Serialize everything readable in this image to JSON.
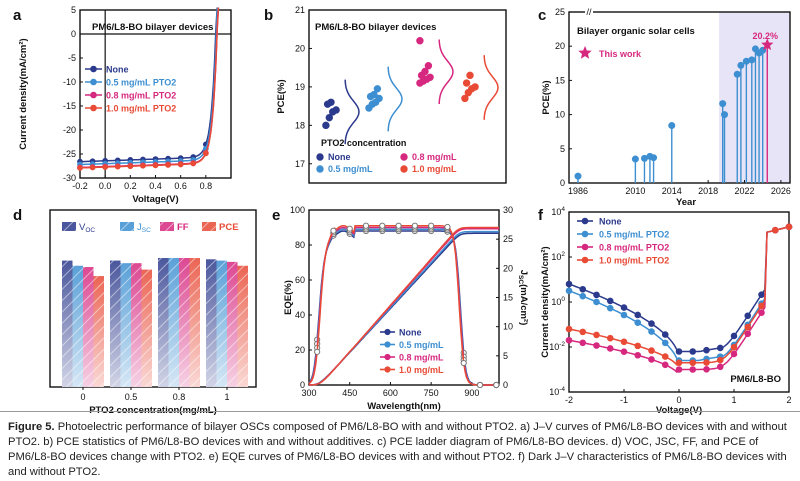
{
  "caption": {
    "label": "Figure 5.",
    "text": "Photoelectric performance of bilayer OSCs composed of PM6/L8-BO with and without PTO2. a) J–V curves of PM6/L8-BO devices with and without PTO2. b) PCE statistics of PM6/L8-BO devices with and without additives. c) PCE ladder diagram of PM6/L8-BO devices. d) VOC, JSC, FF, and PCE of PM6/L8-BO devices change with PTO2. e) EQE curves of PM6/L8-BO devices with and without PTO2. f) Dark J–V characteristics of PM6/L8-BO devices with and without PTO2."
  },
  "colors": {
    "none": "#2b3a8c",
    "c05": "#3d8fd1",
    "c08": "#d6287f",
    "c10": "#e84a36",
    "star": "#d6287f",
    "ladder": "#3d8fd1"
  },
  "chart_data": [
    {
      "panel": "a",
      "type": "line",
      "title": "PM6/L8-BO bilayer devices",
      "xlabel": "Voltage(V)",
      "ylabel": "Current density(mA/cm²)",
      "xlim": [
        -0.2,
        1.0
      ],
      "ylim": [
        -30,
        5
      ],
      "xticks": [
        "-0.2",
        "0.0",
        "0.2",
        "0.4",
        "0.6",
        "0.8"
      ],
      "yticks": [
        "5",
        "0",
        "-5",
        "-10",
        "-15",
        "-20",
        "-25",
        "-30"
      ],
      "legend": "center-left",
      "series": [
        {
          "name": "None",
          "jsc": -26.6,
          "voc": 0.88
        },
        {
          "name": "0.5 mg/mL PTO2",
          "jsc": -27.2,
          "voc": 0.885
        },
        {
          "name": "0.8 mg/mL PTO2",
          "jsc": -27.8,
          "voc": 0.89
        },
        {
          "name": "1.0 mg/mL PTO2",
          "jsc": -27.9,
          "voc": 0.89
        }
      ]
    },
    {
      "panel": "b",
      "type": "scatter",
      "title": "PM6/L8-BO bilayer devices",
      "ylabel": "PCE(%)",
      "ylim": [
        16.5,
        21
      ],
      "yticks": [
        "17",
        "18",
        "19",
        "20",
        "21"
      ],
      "legend_title": "PTO2 concentration",
      "series": [
        {
          "name": "None",
          "values": [
            18.0,
            18.2,
            18.35,
            18.4,
            18.55,
            18.6
          ]
        },
        {
          "name": "0.5 mg/mL",
          "values": [
            18.45,
            18.55,
            18.6,
            18.7,
            18.75,
            18.8,
            18.95
          ]
        },
        {
          "name": "0.8 mg/mL",
          "values": [
            19.1,
            19.15,
            19.2,
            19.25,
            19.3,
            19.4,
            19.55,
            20.2
          ]
        },
        {
          "name": "1.0 mg/mL",
          "values": [
            18.7,
            18.85,
            18.95,
            19.0,
            19.1,
            19.3
          ]
        }
      ]
    },
    {
      "panel": "c",
      "type": "bar",
      "title": "Bilayer organic solar cells",
      "xlabel": "Year",
      "ylabel": "PCE(%)",
      "ylim": [
        0,
        25
      ],
      "yticks": [
        "0",
        "5",
        "10",
        "15",
        "20",
        "25"
      ],
      "xticks": [
        "1986",
        "2010",
        "2014",
        "2018",
        "2022",
        "2026"
      ],
      "annotation": "This work",
      "highlight_value": "20.2%",
      "points": [
        {
          "year": 1986,
          "pce": 1.0
        },
        {
          "year": 2010,
          "pce": 3.5
        },
        {
          "year": 2011,
          "pce": 3.6
        },
        {
          "year": 2011.6,
          "pce": 3.9
        },
        {
          "year": 2012,
          "pce": 3.7
        },
        {
          "year": 2014,
          "pce": 8.4
        },
        {
          "year": 2019.6,
          "pce": 11.6
        },
        {
          "year": 2019.8,
          "pce": 10.0
        },
        {
          "year": 2021.2,
          "pce": 15.9
        },
        {
          "year": 2021.6,
          "pce": 17.2
        },
        {
          "year": 2022.2,
          "pce": 17.8
        },
        {
          "year": 2022.8,
          "pce": 18.0
        },
        {
          "year": 2023.2,
          "pce": 19.6
        },
        {
          "year": 2023.6,
          "pce": 19.0
        },
        {
          "year": 2024.0,
          "pce": 19.4
        },
        {
          "year": 2024.5,
          "pce": 20.2,
          "this_work": true
        }
      ]
    },
    {
      "panel": "d",
      "type": "bar",
      "xlabel": "PTO2 concentration(mg/mL)",
      "categories": [
        "0",
        "0.5",
        "0.8",
        "1"
      ],
      "series": [
        {
          "name": "VOC",
          "values": [
            0.98,
            0.98,
            1.0,
            0.99
          ]
        },
        {
          "name": "JSC",
          "values": [
            0.94,
            0.96,
            1.0,
            0.98
          ]
        },
        {
          "name": "FF",
          "values": [
            0.93,
            0.96,
            1.0,
            0.97
          ]
        },
        {
          "name": "PCE",
          "values": [
            0.86,
            0.91,
            1.0,
            0.94
          ]
        }
      ]
    },
    {
      "panel": "e",
      "type": "line",
      "xlabel": "Wavelength(nm)",
      "ylabel": "EQE(%)",
      "y2label": "JSC(mA/cm²)",
      "xlim": [
        300,
        1000
      ],
      "ylim": [
        0,
        100
      ],
      "y2lim": [
        0,
        30
      ],
      "xticks": [
        "300",
        "450",
        "600",
        "750",
        "900"
      ],
      "yticks": [
        "0",
        "20",
        "40",
        "60",
        "80",
        "100"
      ],
      "y2ticks": [
        "0",
        "5",
        "10",
        "15",
        "20",
        "25",
        "30"
      ],
      "legend": "bottom-center",
      "series": [
        {
          "name": "None",
          "peak": 88,
          "jsc": 26.0
        },
        {
          "name": "0.5 mg/mL",
          "peak": 89,
          "jsc": 26.3
        },
        {
          "name": "0.8 mg/mL",
          "peak": 90,
          "jsc": 26.8
        },
        {
          "name": "1.0 mg/mL",
          "peak": 91,
          "jsc": 27.0
        }
      ]
    },
    {
      "panel": "f",
      "type": "line",
      "title": "PM6/L8-BO",
      "xlabel": "Voltage(V)",
      "ylabel": "Current density(mA/cm²)",
      "xlim": [
        -2,
        2
      ],
      "ylog": true,
      "ylim_exp": [
        -4,
        4
      ],
      "xticks": [
        "-2",
        "-1",
        "0",
        "1",
        "2"
      ],
      "yticks": [
        "10^-4",
        "10^-2",
        "10^0",
        "10^2",
        "10^4"
      ],
      "legend": "top-left",
      "series": [
        {
          "name": "None",
          "rev": 0.8,
          "min": -2.5
        },
        {
          "name": "0.5 mg/mL PTO2",
          "rev": 0.5,
          "min": -2.9
        },
        {
          "name": "0.8 mg/mL PTO2",
          "rev": -1.7,
          "min": -3.3
        },
        {
          "name": "1.0 mg/mL PTO2",
          "rev": -1.2,
          "min": -3.0
        }
      ]
    }
  ]
}
